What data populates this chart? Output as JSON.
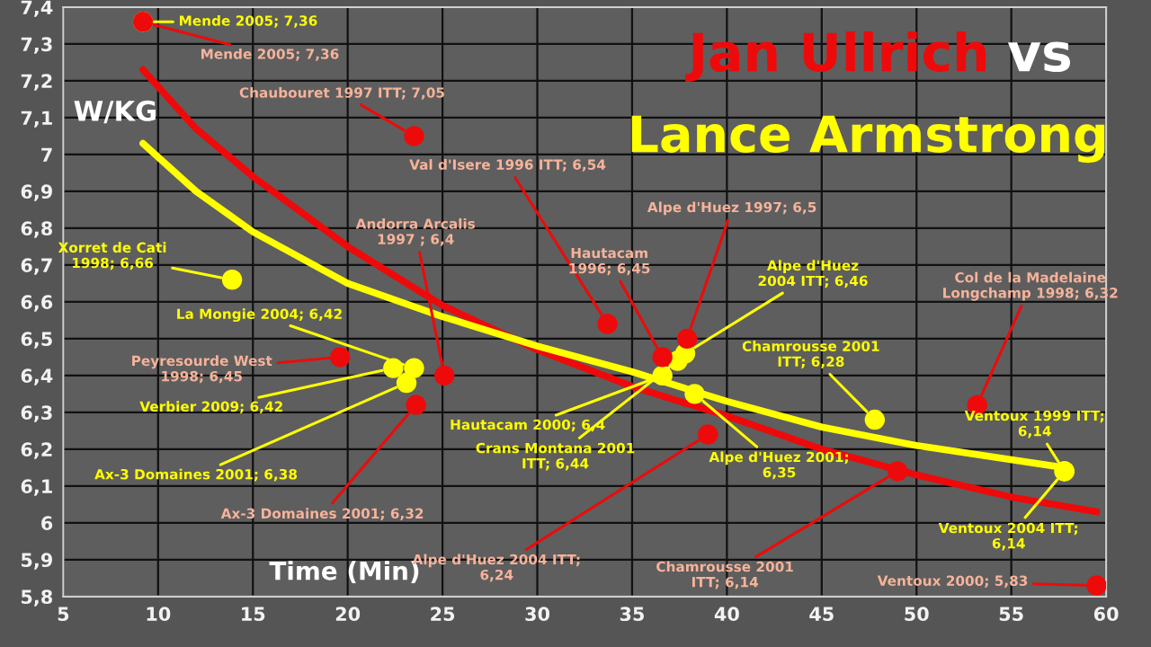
{
  "chart_data": {
    "type": "scatter",
    "title": "vs",
    "xlabel": "Time (Min)",
    "ylabel": "W/KG",
    "xlim": [
      5,
      60
    ],
    "xticks": [
      5,
      10,
      15,
      20,
      25,
      30,
      35,
      40,
      45,
      50,
      55,
      60
    ],
    "ylim": [
      5.8,
      7.4
    ],
    "yticks": [
      {
        "value": 5.8,
        "label": "5,8"
      },
      {
        "value": 5.9,
        "label": "5,9"
      },
      6,
      {
        "value": 6.1,
        "label": "6,1"
      },
      {
        "value": 6.2,
        "label": "6,2"
      },
      {
        "value": 6.3,
        "label": "6,3"
      },
      {
        "value": 6.4,
        "label": "6,4"
      },
      {
        "value": 6.5,
        "label": "6,5"
      },
      {
        "value": 6.6,
        "label": "6,6"
      },
      {
        "value": 6.7,
        "label": "6,7"
      },
      {
        "value": 6.8,
        "label": "6,8"
      },
      {
        "value": 6.9,
        "label": "6,9"
      },
      7,
      {
        "value": 7.1,
        "label": "7,1"
      },
      {
        "value": 7.2,
        "label": "7,2"
      },
      {
        "value": 7.3,
        "label": "7,3"
      },
      {
        "value": 7.4,
        "label": "7,4"
      }
    ],
    "grid": true,
    "series": [
      {
        "name": "Jan Ullrich",
        "marker": "circle",
        "color": "#ee0a0a",
        "x": [
          9.2,
          23.5,
          33.7,
          37.9,
          36.6,
          25.1,
          19.6,
          23.6,
          39.0,
          49.0,
          53.2,
          59.5
        ],
        "values": [
          7.36,
          7.05,
          6.54,
          6.5,
          6.45,
          6.4,
          6.45,
          6.32,
          6.24,
          6.14,
          6.32,
          5.83
        ],
        "value_labels": [
          "Mende 2005; 7,36",
          "Chaubouret 1997 ITT; 7,05",
          "Val d'Isere 1996 ITT; 6,54",
          "Alpe d'Huez 1997; 6,5",
          "Hautacam\n1996; 6,45",
          "Andorra Arcalis\n1997 ; 6,4",
          "Peyresourde West\n1998; 6,45",
          "Ax-3 Domaines 2001; 6,32",
          "Alpe d'Huez 2004 ITT;\n6,24",
          "Chamrousse 2001\nITT; 6,14",
          "Col de la Madelaine\nLongchamp 1998; 6,32",
          "Ventoux 2000; 5,83"
        ]
      },
      {
        "name": "Lance Armstrong",
        "marker": "circle",
        "color": "#ffff00",
        "x": [
          9.2,
          13.9,
          23.5,
          22.4,
          23.1,
          36.6,
          37.4,
          37.8,
          38.3,
          47.8,
          57.8,
          57.8
        ],
        "values": [
          7.36,
          6.66,
          6.42,
          6.42,
          6.38,
          6.4,
          6.44,
          6.46,
          6.35,
          6.28,
          6.14,
          6.14
        ],
        "value_labels": [
          "Mende 2005; 7,36",
          "Xorret de Cati\n1998; 6,66",
          "La Mongie 2004; 6,42",
          "Verbier 2009; 6,42",
          "Ax-3 Domaines 2001; 6,38",
          "Hautacam 2000; 6,4",
          "Crans Montana 2001\nITT; 6,44",
          "Alpe d'Huez\n2004 ITT; 6,46",
          "Alpe d'Huez 2001;\n6,35",
          "Chamrousse 2001\nITT; 6,28",
          "Ventoux 1999 ITT;\n6,14",
          "Ventoux 2004 ITT;\n6,14"
        ]
      },
      {
        "type": "line",
        "marker": "none",
        "color": "#ee0a0a",
        "x": [
          9.2,
          12,
          15,
          20,
          25,
          30,
          35,
          40,
          45,
          50,
          55,
          59.5
        ],
        "values": [
          7.23,
          7.07,
          6.94,
          6.75,
          6.59,
          6.47,
          6.37,
          6.29,
          6.2,
          6.13,
          6.07,
          6.03
        ]
      },
      {
        "type": "line",
        "marker": "none",
        "color": "#ffff00",
        "x": [
          9.2,
          12,
          15,
          20,
          25,
          30,
          35,
          40,
          45,
          50,
          57.8
        ],
        "values": [
          7.03,
          6.9,
          6.79,
          6.65,
          6.56,
          6.48,
          6.41,
          6.33,
          6.26,
          6.21,
          6.15
        ]
      }
    ]
  }
}
